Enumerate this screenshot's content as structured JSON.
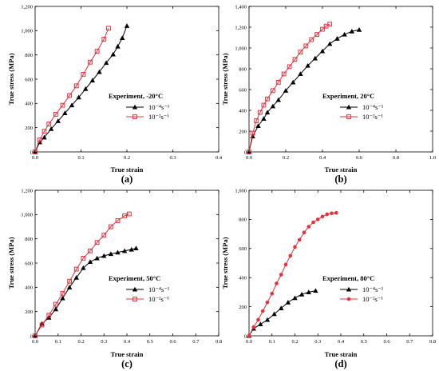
{
  "colors": {
    "black_series": "#000000",
    "red_series": "#e8303a"
  },
  "chart_data": [
    {
      "type": "line",
      "panel_label": "(a)",
      "xlabel": "True strain",
      "ylabel": "True stress (MPa)",
      "xlim": [
        0,
        0.4
      ],
      "ylim": [
        0,
        1200
      ],
      "xticks": [
        "0.0",
        "0.1",
        "0.2",
        "0.3",
        "0.4"
      ],
      "yticks": [
        "0",
        "200",
        "400",
        "600",
        "800",
        "1,000",
        "1,200"
      ],
      "legend_title": "Experiment, -20°C",
      "series": [
        {
          "name": "10⁻⁴s⁻¹",
          "marker": "triangle",
          "color": "#000000",
          "x": [
            0,
            0.01,
            0.02,
            0.035,
            0.05,
            0.065,
            0.08,
            0.095,
            0.11,
            0.125,
            0.14,
            0.155,
            0.17,
            0.18,
            0.19,
            0.2
          ],
          "y": [
            0,
            80,
            120,
            190,
            255,
            320,
            385,
            450,
            520,
            590,
            660,
            735,
            805,
            870,
            940,
            1040
          ]
        },
        {
          "name": "10⁻²s⁻¹",
          "marker": "square",
          "color": "#e8303a",
          "x": [
            0,
            0.01,
            0.02,
            0.03,
            0.045,
            0.06,
            0.075,
            0.09,
            0.105,
            0.12,
            0.135,
            0.15,
            0.16
          ],
          "y": [
            0,
            100,
            170,
            230,
            310,
            385,
            465,
            545,
            640,
            740,
            830,
            930,
            1020
          ]
        }
      ]
    },
    {
      "type": "line",
      "panel_label": "(b)",
      "xlabel": "True strain",
      "ylabel": "True stress (MPa)",
      "xlim": [
        0,
        1.0
      ],
      "ylim": [
        0,
        1400
      ],
      "xticks": [
        "0.0",
        "0.2",
        "0.4",
        "0.6",
        "0.8",
        "1.0"
      ],
      "yticks": [
        "0",
        "200",
        "400",
        "600",
        "800",
        "1,000",
        "1,200",
        "1,400"
      ],
      "legend_title": "Experiment, 20°C",
      "series": [
        {
          "name": "10⁻⁴s⁻¹",
          "marker": "triangle",
          "color": "#000000",
          "x": [
            0,
            0.02,
            0.05,
            0.08,
            0.1,
            0.13,
            0.16,
            0.2,
            0.24,
            0.28,
            0.32,
            0.36,
            0.4,
            0.44,
            0.48,
            0.52,
            0.56,
            0.6
          ],
          "y": [
            0,
            150,
            250,
            320,
            380,
            440,
            500,
            590,
            670,
            750,
            830,
            900,
            970,
            1040,
            1090,
            1130,
            1160,
            1175
          ]
        },
        {
          "name": "10⁻²s⁻¹",
          "marker": "square",
          "color": "#e8303a",
          "x": [
            0,
            0.02,
            0.04,
            0.06,
            0.08,
            0.1,
            0.13,
            0.16,
            0.19,
            0.22,
            0.25,
            0.28,
            0.31,
            0.34,
            0.37,
            0.4,
            0.42,
            0.44
          ],
          "y": [
            0,
            180,
            300,
            380,
            450,
            510,
            590,
            670,
            750,
            820,
            890,
            960,
            1020,
            1080,
            1130,
            1180,
            1210,
            1230
          ]
        }
      ]
    },
    {
      "type": "line",
      "panel_label": "(c)",
      "xlabel": "True strain",
      "ylabel": "True stress (MPa)",
      "xlim": [
        0,
        0.8
      ],
      "ylim": [
        0,
        1200
      ],
      "xticks": [
        "0.0",
        "0.1",
        "0.2",
        "0.3",
        "0.4",
        "0.5",
        "0.6",
        "0.7",
        "0.8"
      ],
      "yticks": [
        "0",
        "200",
        "400",
        "600",
        "800",
        "1,000",
        "1,200"
      ],
      "legend_title": "Experiment, 50°C",
      "series": [
        {
          "name": "10⁻⁴s⁻¹",
          "marker": "triangle",
          "color": "#000000",
          "x": [
            0,
            0.03,
            0.06,
            0.09,
            0.12,
            0.15,
            0.18,
            0.21,
            0.24,
            0.27,
            0.3,
            0.33,
            0.36,
            0.39,
            0.42,
            0.44
          ],
          "y": [
            0,
            100,
            150,
            220,
            310,
            400,
            480,
            560,
            610,
            640,
            660,
            675,
            688,
            700,
            712,
            722
          ]
        },
        {
          "name": "10⁻²s⁻¹",
          "marker": "square",
          "color": "#e8303a",
          "x": [
            0,
            0.03,
            0.06,
            0.09,
            0.12,
            0.15,
            0.18,
            0.21,
            0.24,
            0.27,
            0.3,
            0.33,
            0.36,
            0.39,
            0.41
          ],
          "y": [
            0,
            90,
            170,
            260,
            350,
            450,
            550,
            640,
            700,
            770,
            830,
            900,
            950,
            990,
            1005
          ]
        }
      ]
    },
    {
      "type": "line",
      "panel_label": "(d)",
      "xlabel": "True strain",
      "ylabel": "True stress (MPa)",
      "xlim": [
        0,
        0.8
      ],
      "ylim": [
        0,
        1000
      ],
      "xticks": [
        "0.0",
        "0.1",
        "0.2",
        "0.3",
        "0.4",
        "0.5",
        "0.6",
        "0.7",
        "0.8"
      ],
      "yticks": [
        "0",
        "200",
        "400",
        "600",
        "800",
        "1,000"
      ],
      "legend_title": "Experiment, 80°C",
      "series": [
        {
          "name": "10⁻⁴s⁻¹",
          "marker": "triangle",
          "color": "#000000",
          "x": [
            0,
            0.02,
            0.05,
            0.08,
            0.11,
            0.14,
            0.17,
            0.2,
            0.23,
            0.26,
            0.29
          ],
          "y": [
            0,
            50,
            80,
            110,
            150,
            190,
            230,
            260,
            285,
            300,
            310
          ]
        },
        {
          "name": "10⁻²s⁻¹",
          "marker": "circle",
          "color": "#e8303a",
          "x": [
            0,
            0.02,
            0.04,
            0.06,
            0.08,
            0.1,
            0.12,
            0.14,
            0.16,
            0.18,
            0.2,
            0.22,
            0.24,
            0.26,
            0.28,
            0.3,
            0.32,
            0.34,
            0.36,
            0.38
          ],
          "y": [
            0,
            60,
            110,
            170,
            230,
            290,
            360,
            420,
            490,
            550,
            610,
            660,
            710,
            750,
            780,
            800,
            820,
            835,
            842,
            845
          ]
        }
      ]
    }
  ]
}
